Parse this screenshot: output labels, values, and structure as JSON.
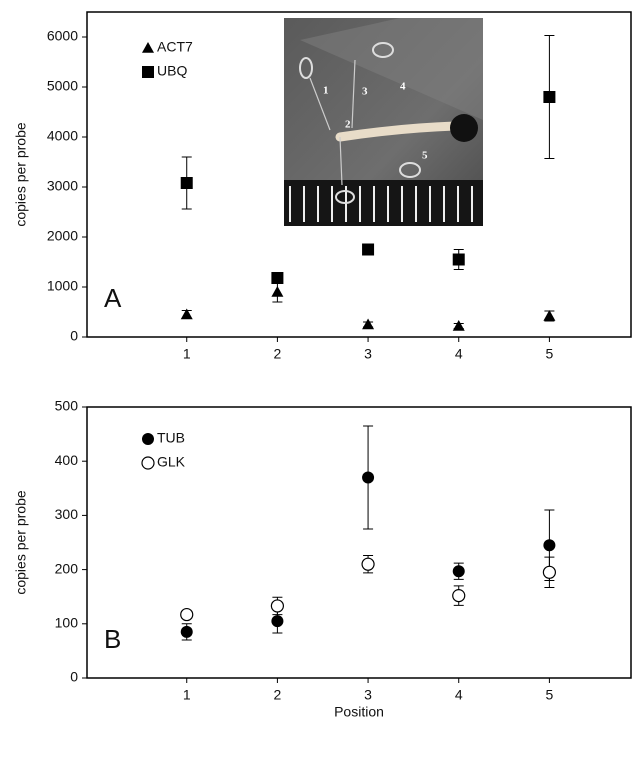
{
  "chart_data": [
    {
      "type": "scatter",
      "panel_label": "A",
      "ylabel": "copies per probe",
      "x": [
        1,
        2,
        3,
        4,
        5
      ],
      "xlim": [
        -0.1,
        5.9
      ],
      "xticks": [
        1,
        2,
        3,
        4,
        5
      ],
      "ylim": [
        0,
        6500
      ],
      "yticks": [
        0,
        1000,
        2000,
        3000,
        4000,
        5000,
        6000
      ],
      "inset_labels": [
        "1",
        "2",
        "3",
        "4",
        "5"
      ],
      "series": [
        {
          "name": "ACT7",
          "marker": "triangle",
          "color": "#000000",
          "values": [
            450,
            900,
            250,
            220,
            420
          ],
          "errors": [
            80,
            200,
            50,
            50,
            100
          ]
        },
        {
          "name": "UBQ",
          "marker": "square",
          "color": "#000000",
          "values": [
            3080,
            1180,
            1750,
            1550,
            4800
          ],
          "errors": [
            520,
            50,
            80,
            200,
            1230
          ]
        }
      ]
    },
    {
      "type": "scatter",
      "panel_label": "B",
      "ylabel": "copies per probe",
      "xlabel": "Position",
      "x": [
        1,
        2,
        3,
        4,
        5
      ],
      "xlim": [
        -0.1,
        5.9
      ],
      "xticks": [
        1,
        2,
        3,
        4,
        5
      ],
      "ylim": [
        0,
        500
      ],
      "yticks": [
        0,
        100,
        200,
        300,
        400,
        500
      ],
      "series": [
        {
          "name": "TUB",
          "marker": "circle-filled",
          "color": "#000000",
          "values": [
            85,
            105,
            370,
            197,
            245
          ],
          "errors": [
            15,
            22,
            95,
            15,
            65
          ]
        },
        {
          "name": "GLK",
          "marker": "circle-open",
          "color": "#000000",
          "values": [
            117,
            133,
            210,
            152,
            195
          ],
          "errors": [
            5,
            16,
            16,
            18,
            28
          ]
        }
      ]
    }
  ]
}
